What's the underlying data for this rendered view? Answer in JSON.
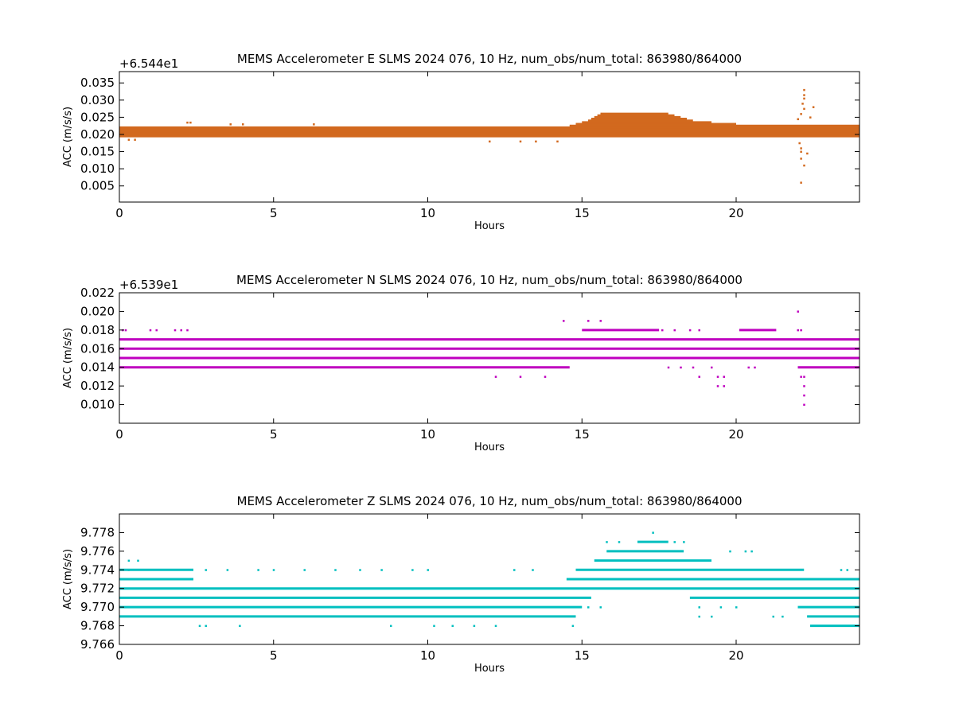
{
  "chart_data": [
    {
      "type": "scatter",
      "title": "MEMS Accelerometer E SLMS 2024 076, 10 Hz, num_obs/num_total: 863980/864000",
      "xlabel": "Hours",
      "ylabel": "ACC (m/s/s)",
      "offset_label": "+6.544e1",
      "color": "#d2691e",
      "xlim": [
        0,
        24
      ],
      "ylim": [
        0.0003,
        0.0383
      ],
      "x_ticks": [
        0,
        5,
        10,
        15,
        20
      ],
      "x_tick_labels": [
        "0",
        "5",
        "10",
        "15",
        "20"
      ],
      "y_ticks": [
        0.005,
        0.01,
        0.015,
        0.02,
        0.025,
        0.03,
        0.035
      ],
      "y_tick_labels": [
        "0.005",
        "0.010",
        "0.015",
        "0.020",
        "0.025",
        "0.030",
        "0.035"
      ],
      "grid": false,
      "series": [
        {
          "points_desc": "dense band of values",
          "bands": [
            {
              "y": 0.0195,
              "x_from": 0,
              "x_to": 24
            },
            {
              "y": 0.02,
              "x_from": 0,
              "x_to": 24
            },
            {
              "y": 0.0205,
              "x_from": 0,
              "x_to": 24
            },
            {
              "y": 0.021,
              "x_from": 0,
              "x_to": 24
            },
            {
              "y": 0.0215,
              "x_from": 0,
              "x_to": 24
            },
            {
              "y": 0.022,
              "x_from": 0,
              "x_to": 24
            },
            {
              "y": 0.0225,
              "x_from": 14.6,
              "x_to": 24
            },
            {
              "y": 0.023,
              "x_from": 14.8,
              "x_to": 20
            },
            {
              "y": 0.0235,
              "x_from": 15.0,
              "x_to": 19.2
            },
            {
              "y": 0.024,
              "x_from": 15.2,
              "x_to": 18.6
            },
            {
              "y": 0.0245,
              "x_from": 15.3,
              "x_to": 18.4
            },
            {
              "y": 0.025,
              "x_from": 15.4,
              "x_to": 18.2
            },
            {
              "y": 0.0255,
              "x_from": 15.5,
              "x_to": 18.0
            },
            {
              "y": 0.026,
              "x_from": 15.6,
              "x_to": 17.8
            }
          ],
          "scattered": [
            [
              2.2,
              0.0235
            ],
            [
              2.3,
              0.0235
            ],
            [
              0.3,
              0.0185
            ],
            [
              0.5,
              0.0185
            ],
            [
              3.6,
              0.023
            ],
            [
              4.0,
              0.023
            ],
            [
              6.3,
              0.023
            ],
            [
              12.0,
              0.018
            ],
            [
              13.0,
              0.018
            ],
            [
              13.5,
              0.018
            ],
            [
              14.2,
              0.018
            ],
            [
              22.0,
              0.0245
            ],
            [
              22.1,
              0.026
            ],
            [
              22.2,
              0.0275
            ],
            [
              22.15,
              0.029
            ],
            [
              22.2,
              0.0305
            ],
            [
              22.2,
              0.0315
            ],
            [
              22.2,
              0.033
            ],
            [
              22.05,
              0.0175
            ],
            [
              22.1,
              0.016
            ],
            [
              22.1,
              0.015
            ],
            [
              22.1,
              0.013
            ],
            [
              22.2,
              0.011
            ],
            [
              22.1,
              0.006
            ],
            [
              22.3,
              0.0145
            ],
            [
              22.4,
              0.025
            ],
            [
              22.5,
              0.028
            ]
          ]
        }
      ]
    },
    {
      "type": "scatter",
      "title": "MEMS Accelerometer N SLMS 2024 076, 10 Hz, num_obs/num_total: 863980/864000",
      "xlabel": "Hours",
      "ylabel": "ACC (m/s/s)",
      "offset_label": "+6.539e1",
      "color": "#bf00bf",
      "xlim": [
        0,
        24
      ],
      "ylim": [
        0.008,
        0.022
      ],
      "x_ticks": [
        0,
        5,
        10,
        15,
        20
      ],
      "x_tick_labels": [
        "0",
        "5",
        "10",
        "15",
        "20"
      ],
      "y_ticks": [
        0.01,
        0.012,
        0.014,
        0.016,
        0.018,
        0.02,
        0.022
      ],
      "y_tick_labels": [
        "0.010",
        "0.012",
        "0.014",
        "0.016",
        "0.018",
        "0.020",
        "0.022"
      ],
      "grid": false,
      "series": [
        {
          "bands": [
            {
              "y": 0.017,
              "x_from": 0,
              "x_to": 24
            },
            {
              "y": 0.016,
              "x_from": 0,
              "x_to": 24
            },
            {
              "y": 0.015,
              "x_from": 0,
              "x_to": 24
            },
            {
              "y": 0.014,
              "x_from": 0,
              "x_to": 14.6
            },
            {
              "y": 0.014,
              "x_from": 22.0,
              "x_to": 24
            },
            {
              "y": 0.018,
              "x_from": 15.0,
              "x_to": 17.5
            },
            {
              "y": 0.018,
              "x_from": 20.1,
              "x_to": 21.3
            }
          ],
          "scattered": [
            [
              0.1,
              0.018
            ],
            [
              0.2,
              0.018
            ],
            [
              1.0,
              0.018
            ],
            [
              1.2,
              0.018
            ],
            [
              1.8,
              0.018
            ],
            [
              2.0,
              0.018
            ],
            [
              2.2,
              0.018
            ],
            [
              12.2,
              0.013
            ],
            [
              13.0,
              0.013
            ],
            [
              13.8,
              0.013
            ],
            [
              14.4,
              0.019
            ],
            [
              15.2,
              0.019
            ],
            [
              15.6,
              0.019
            ],
            [
              17.6,
              0.018
            ],
            [
              18.0,
              0.018
            ],
            [
              18.5,
              0.018
            ],
            [
              18.8,
              0.018
            ],
            [
              17.8,
              0.014
            ],
            [
              18.2,
              0.014
            ],
            [
              18.6,
              0.014
            ],
            [
              18.8,
              0.013
            ],
            [
              19.4,
              0.013
            ],
            [
              19.6,
              0.013
            ],
            [
              19.4,
              0.012
            ],
            [
              19.6,
              0.012
            ],
            [
              19.2,
              0.014
            ],
            [
              20.4,
              0.014
            ],
            [
              20.6,
              0.014
            ],
            [
              22.0,
              0.02
            ],
            [
              22.0,
              0.018
            ],
            [
              22.1,
              0.018
            ],
            [
              22.1,
              0.013
            ],
            [
              22.2,
              0.013
            ],
            [
              22.2,
              0.012
            ],
            [
              22.2,
              0.011
            ],
            [
              22.2,
              0.01
            ],
            [
              23.9,
              0.014
            ]
          ]
        }
      ]
    },
    {
      "type": "scatter",
      "title": "MEMS Accelerometer Z SLMS 2024 076, 10 Hz, num_obs/num_total: 863980/864000",
      "xlabel": "Hours",
      "ylabel": "ACC (m/s/s)",
      "offset_label": "",
      "color": "#00bfbf",
      "xlim": [
        0,
        24
      ],
      "ylim": [
        9.766,
        9.78
      ],
      "x_ticks": [
        0,
        5,
        10,
        15,
        20
      ],
      "x_tick_labels": [
        "0",
        "5",
        "10",
        "15",
        "20"
      ],
      "y_ticks": [
        9.766,
        9.768,
        9.77,
        9.772,
        9.774,
        9.776,
        9.778
      ],
      "y_tick_labels": [
        "9.766",
        "9.768",
        "9.770",
        "9.772",
        "9.774",
        "9.776",
        "9.778"
      ],
      "grid": false,
      "series": [
        {
          "bands": [
            {
              "y": 9.771,
              "x_from": 0,
              "x_to": 15.3
            },
            {
              "y": 9.771,
              "x_from": 18.5,
              "x_to": 24
            },
            {
              "y": 9.772,
              "x_from": 0,
              "x_to": 24
            },
            {
              "y": 9.77,
              "x_from": 0,
              "x_to": 15.0
            },
            {
              "y": 9.77,
              "x_from": 22.0,
              "x_to": 24
            },
            {
              "y": 9.769,
              "x_from": 0,
              "x_to": 14.8
            },
            {
              "y": 9.769,
              "x_from": 22.3,
              "x_to": 24
            },
            {
              "y": 9.773,
              "x_from": 0,
              "x_to": 2.4
            },
            {
              "y": 9.773,
              "x_from": 14.5,
              "x_to": 24
            },
            {
              "y": 9.774,
              "x_from": 0,
              "x_to": 2.4
            },
            {
              "y": 9.774,
              "x_from": 14.8,
              "x_to": 22.2
            },
            {
              "y": 9.775,
              "x_from": 15.4,
              "x_to": 19.2
            },
            {
              "y": 9.776,
              "x_from": 15.8,
              "x_to": 18.3
            },
            {
              "y": 9.777,
              "x_from": 16.8,
              "x_to": 17.8
            },
            {
              "y": 9.768,
              "x_from": 22.4,
              "x_to": 24
            }
          ],
          "scattered": [
            [
              0.3,
              9.775
            ],
            [
              0.6,
              9.775
            ],
            [
              0.3,
              9.774
            ],
            [
              2.6,
              9.768
            ],
            [
              2.8,
              9.768
            ],
            [
              3.9,
              9.768
            ],
            [
              2.8,
              9.774
            ],
            [
              3.5,
              9.774
            ],
            [
              4.5,
              9.774
            ],
            [
              5.0,
              9.774
            ],
            [
              6.0,
              9.774
            ],
            [
              7.0,
              9.774
            ],
            [
              7.8,
              9.774
            ],
            [
              8.5,
              9.774
            ],
            [
              9.5,
              9.774
            ],
            [
              10.0,
              9.774
            ],
            [
              12.8,
              9.774
            ],
            [
              13.4,
              9.774
            ],
            [
              8.8,
              9.768
            ],
            [
              10.2,
              9.768
            ],
            [
              10.8,
              9.768
            ],
            [
              11.5,
              9.768
            ],
            [
              12.2,
              9.768
            ],
            [
              14.7,
              9.768
            ],
            [
              15.8,
              9.777
            ],
            [
              16.2,
              9.777
            ],
            [
              17.3,
              9.778
            ],
            [
              18.0,
              9.777
            ],
            [
              18.3,
              9.777
            ],
            [
              19.8,
              9.776
            ],
            [
              20.3,
              9.776
            ],
            [
              20.5,
              9.776
            ],
            [
              18.8,
              9.77
            ],
            [
              19.5,
              9.77
            ],
            [
              20.0,
              9.77
            ],
            [
              18.8,
              9.769
            ],
            [
              19.2,
              9.769
            ],
            [
              21.2,
              9.769
            ],
            [
              21.5,
              9.769
            ],
            [
              23.4,
              9.774
            ],
            [
              23.6,
              9.774
            ],
            [
              15.2,
              9.77
            ],
            [
              15.6,
              9.77
            ]
          ]
        }
      ]
    }
  ]
}
